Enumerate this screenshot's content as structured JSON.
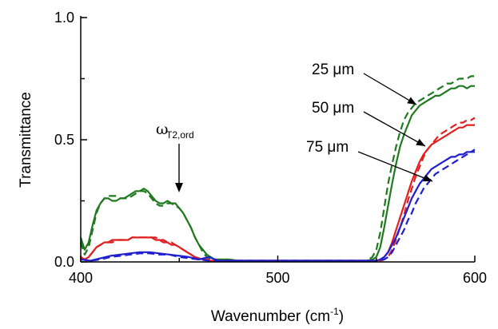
{
  "chart_data": {
    "type": "line",
    "xlabel": "Wavenumber (cm",
    "xlabel_sup": "-1",
    "xlabel_close": ")",
    "ylabel": "Transmittance",
    "xlim": [
      400,
      600
    ],
    "ylim": [
      0,
      1.0
    ],
    "x_ticks": [
      400,
      500,
      600
    ],
    "y_ticks": [
      0.0,
      0.5,
      1.0
    ],
    "y_tick_labels": [
      "0.0",
      "0.5",
      "1.0"
    ],
    "grid": false,
    "annotations": [
      {
        "id": "omega",
        "symbol": "ω",
        "subscript": "T2,ord"
      },
      {
        "id": "25",
        "text": "25 μm",
        "color": "#1f7a1f"
      },
      {
        "id": "50",
        "text": "50 μm",
        "color": "#e02020"
      },
      {
        "id": "75",
        "text": "75 μm",
        "color": "#1f1fd0"
      }
    ],
    "series": [
      {
        "color": "#1f7a1f",
        "dash": false,
        "x": [
          400,
          402,
          404,
          406,
          408,
          410,
          412,
          414,
          416,
          418,
          420,
          422,
          424,
          426,
          428,
          430,
          432,
          434,
          436,
          438,
          440,
          442,
          444,
          446,
          448,
          450,
          452,
          454,
          456,
          458,
          460,
          462,
          464,
          466,
          468,
          470,
          475,
          480,
          490,
          500,
          510,
          520,
          530,
          540,
          545,
          548,
          550,
          552,
          554,
          556,
          558,
          560,
          562,
          564,
          566,
          568,
          570,
          572,
          574,
          576,
          578,
          580,
          582,
          584,
          586,
          588,
          590,
          592,
          594,
          596,
          598,
          600
        ],
        "y": [
          0.1,
          0.05,
          0.08,
          0.15,
          0.21,
          0.24,
          0.26,
          0.26,
          0.25,
          0.25,
          0.26,
          0.26,
          0.27,
          0.28,
          0.29,
          0.29,
          0.3,
          0.29,
          0.27,
          0.25,
          0.24,
          0.24,
          0.25,
          0.24,
          0.24,
          0.22,
          0.2,
          0.17,
          0.14,
          0.1,
          0.07,
          0.05,
          0.03,
          0.02,
          0.01,
          0.01,
          0.01,
          0.005,
          0.005,
          0.005,
          0.005,
          0.005,
          0.005,
          0.005,
          0.005,
          0.01,
          0.02,
          0.06,
          0.14,
          0.23,
          0.32,
          0.4,
          0.47,
          0.52,
          0.56,
          0.6,
          0.62,
          0.64,
          0.65,
          0.66,
          0.67,
          0.68,
          0.68,
          0.69,
          0.7,
          0.71,
          0.71,
          0.72,
          0.72,
          0.71,
          0.72,
          0.72
        ]
      },
      {
        "color": "#1f7a1f",
        "dash": true,
        "x": [
          400,
          402,
          404,
          406,
          408,
          410,
          412,
          414,
          416,
          418,
          420,
          422,
          424,
          426,
          428,
          430,
          432,
          434,
          436,
          438,
          440,
          442,
          444,
          446,
          448,
          450,
          452,
          454,
          456,
          458,
          460,
          462,
          464,
          466,
          468,
          470,
          475,
          480,
          490,
          500,
          510,
          520,
          530,
          540,
          545,
          548,
          550,
          552,
          554,
          556,
          558,
          560,
          562,
          564,
          566,
          568,
          570,
          572,
          574,
          576,
          578,
          580,
          582,
          584,
          586,
          588,
          590,
          592,
          594,
          596,
          598,
          600
        ],
        "y": [
          0.08,
          0.03,
          0.06,
          0.13,
          0.2,
          0.24,
          0.26,
          0.27,
          0.27,
          0.27,
          0.26,
          0.26,
          0.26,
          0.27,
          0.28,
          0.29,
          0.29,
          0.28,
          0.26,
          0.24,
          0.23,
          0.23,
          0.24,
          0.24,
          0.23,
          0.22,
          0.2,
          0.17,
          0.14,
          0.1,
          0.07,
          0.04,
          0.02,
          0.01,
          0.01,
          0.005,
          0.005,
          0.005,
          0.005,
          0.005,
          0.005,
          0.005,
          0.005,
          0.005,
          0.005,
          0.02,
          0.05,
          0.12,
          0.22,
          0.32,
          0.4,
          0.47,
          0.53,
          0.58,
          0.61,
          0.63,
          0.65,
          0.66,
          0.67,
          0.68,
          0.69,
          0.7,
          0.71,
          0.72,
          0.73,
          0.73,
          0.74,
          0.75,
          0.75,
          0.75,
          0.76,
          0.76
        ]
      },
      {
        "color": "#e02020",
        "dash": false,
        "x": [
          400,
          402,
          404,
          406,
          408,
          410,
          412,
          414,
          416,
          418,
          420,
          422,
          424,
          426,
          428,
          430,
          432,
          434,
          436,
          438,
          440,
          442,
          444,
          446,
          448,
          450,
          452,
          454,
          456,
          458,
          460,
          462,
          464,
          466,
          468,
          470,
          475,
          480,
          490,
          500,
          510,
          520,
          530,
          540,
          545,
          550,
          552,
          554,
          556,
          558,
          560,
          562,
          564,
          566,
          568,
          570,
          572,
          574,
          576,
          578,
          580,
          582,
          584,
          586,
          588,
          590,
          592,
          594,
          596,
          598,
          600
        ],
        "y": [
          0.02,
          0.01,
          0.02,
          0.04,
          0.06,
          0.07,
          0.08,
          0.08,
          0.09,
          0.09,
          0.09,
          0.09,
          0.09,
          0.1,
          0.1,
          0.1,
          0.1,
          0.1,
          0.1,
          0.09,
          0.09,
          0.08,
          0.08,
          0.07,
          0.07,
          0.06,
          0.05,
          0.04,
          0.03,
          0.02,
          0.015,
          0.01,
          0.01,
          0.005,
          0.005,
          0.005,
          0.005,
          0.005,
          0.005,
          0.005,
          0.005,
          0.005,
          0.005,
          0.005,
          0.005,
          0.005,
          0.01,
          0.02,
          0.04,
          0.08,
          0.13,
          0.18,
          0.23,
          0.28,
          0.33,
          0.37,
          0.41,
          0.44,
          0.46,
          0.48,
          0.49,
          0.5,
          0.51,
          0.52,
          0.53,
          0.54,
          0.55,
          0.55,
          0.56,
          0.56,
          0.56
        ]
      },
      {
        "color": "#e02020",
        "dash": true,
        "x": [
          400,
          402,
          404,
          406,
          408,
          410,
          412,
          414,
          416,
          418,
          420,
          422,
          424,
          426,
          428,
          430,
          432,
          434,
          436,
          438,
          440,
          442,
          444,
          446,
          448,
          450,
          452,
          454,
          456,
          458,
          460,
          462,
          464,
          466,
          468,
          470,
          475,
          480,
          490,
          500,
          510,
          520,
          530,
          540,
          545,
          550,
          552,
          554,
          556,
          558,
          560,
          562,
          564,
          566,
          568,
          570,
          572,
          574,
          576,
          578,
          580,
          582,
          584,
          586,
          588,
          590,
          592,
          594,
          596,
          598,
          600
        ],
        "y": [
          0.02,
          0.01,
          0.02,
          0.04,
          0.06,
          0.07,
          0.08,
          0.08,
          0.08,
          0.09,
          0.09,
          0.09,
          0.09,
          0.1,
          0.1,
          0.1,
          0.1,
          0.1,
          0.1,
          0.1,
          0.09,
          0.09,
          0.08,
          0.08,
          0.07,
          0.06,
          0.05,
          0.04,
          0.03,
          0.02,
          0.015,
          0.01,
          0.01,
          0.005,
          0.005,
          0.005,
          0.005,
          0.005,
          0.005,
          0.005,
          0.005,
          0.005,
          0.005,
          0.005,
          0.005,
          0.005,
          0.005,
          0.01,
          0.02,
          0.05,
          0.09,
          0.14,
          0.19,
          0.25,
          0.3,
          0.35,
          0.39,
          0.43,
          0.46,
          0.48,
          0.5,
          0.52,
          0.53,
          0.54,
          0.55,
          0.56,
          0.57,
          0.57,
          0.58,
          0.58,
          0.59
        ]
      },
      {
        "color": "#1f1fd0",
        "dash": false,
        "x": [
          400,
          405,
          410,
          415,
          420,
          425,
          430,
          435,
          440,
          445,
          450,
          455,
          460,
          465,
          470,
          480,
          490,
          500,
          510,
          520,
          530,
          540,
          545,
          550,
          552,
          554,
          556,
          558,
          560,
          562,
          564,
          566,
          568,
          570,
          572,
          574,
          576,
          578,
          580,
          582,
          584,
          586,
          588,
          590,
          592,
          594,
          596,
          598,
          600
        ],
        "y": [
          0.01,
          0.005,
          0.015,
          0.025,
          0.03,
          0.035,
          0.04,
          0.04,
          0.035,
          0.03,
          0.025,
          0.02,
          0.01,
          0.02,
          0.005,
          0.005,
          0.005,
          0.005,
          0.005,
          0.005,
          0.005,
          0.005,
          0.005,
          0.005,
          0.01,
          0.02,
          0.04,
          0.07,
          0.1,
          0.14,
          0.18,
          0.22,
          0.26,
          0.29,
          0.32,
          0.34,
          0.36,
          0.38,
          0.39,
          0.4,
          0.41,
          0.42,
          0.43,
          0.43,
          0.44,
          0.44,
          0.45,
          0.45,
          0.46
        ]
      },
      {
        "color": "#1f1fd0",
        "dash": true,
        "x": [
          400,
          405,
          410,
          415,
          420,
          425,
          430,
          435,
          440,
          445,
          450,
          455,
          460,
          465,
          470,
          480,
          490,
          500,
          510,
          520,
          530,
          540,
          545,
          550,
          552,
          554,
          556,
          558,
          560,
          562,
          564,
          566,
          568,
          570,
          572,
          574,
          576,
          578,
          580,
          582,
          584,
          586,
          588,
          590,
          592,
          594,
          596,
          598,
          600
        ],
        "y": [
          0.01,
          0.005,
          0.01,
          0.02,
          0.025,
          0.03,
          0.035,
          0.035,
          0.03,
          0.03,
          0.02,
          0.015,
          0.01,
          0.005,
          0.005,
          0.005,
          0.005,
          0.005,
          0.005,
          0.005,
          0.005,
          0.005,
          0.005,
          0.005,
          0.005,
          0.01,
          0.02,
          0.04,
          0.07,
          0.1,
          0.13,
          0.17,
          0.2,
          0.24,
          0.27,
          0.3,
          0.32,
          0.34,
          0.36,
          0.37,
          0.38,
          0.39,
          0.4,
          0.41,
          0.42,
          0.43,
          0.44,
          0.45,
          0.45
        ]
      }
    ]
  }
}
